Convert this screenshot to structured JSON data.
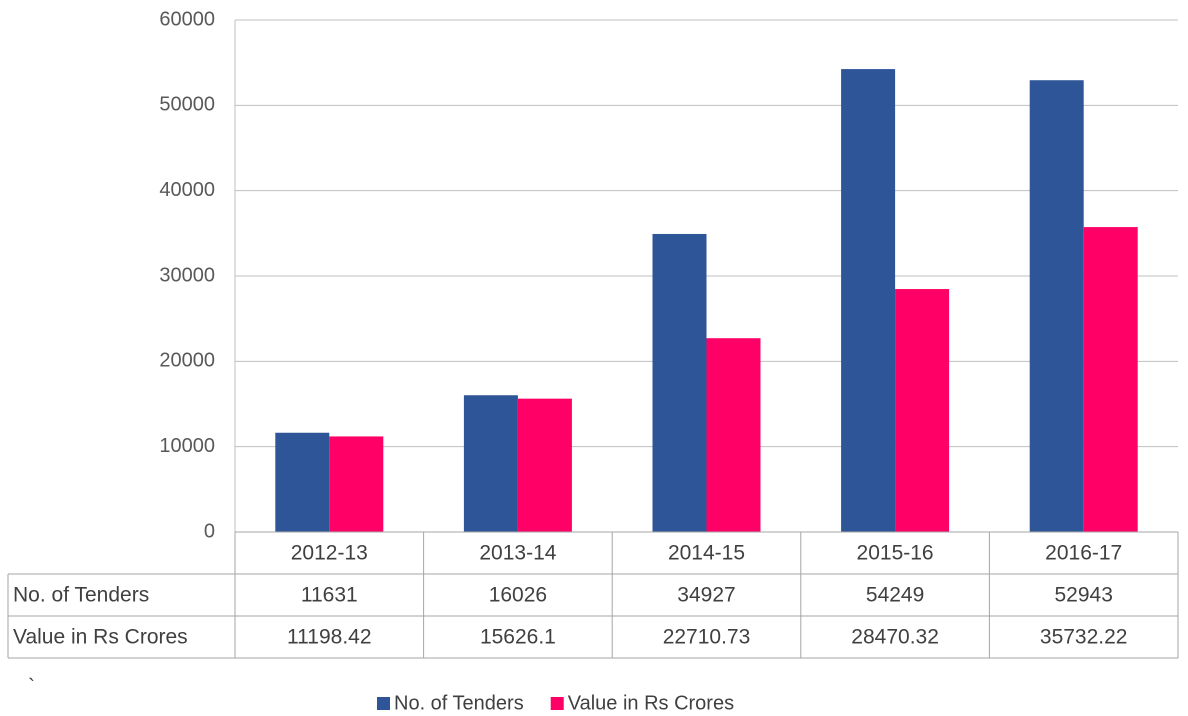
{
  "chart_data": {
    "type": "bar",
    "categories": [
      "2012-13",
      "2013-14",
      "2014-15",
      "2015-16",
      "2016-17"
    ],
    "series": [
      {
        "name": "No. of Tenders",
        "color": "#2e5597",
        "values": [
          11631,
          16026,
          34927,
          54249,
          52943
        ]
      },
      {
        "name": "Value in Rs Crores",
        "color": "#ff0066",
        "values": [
          11198.42,
          15626.1,
          22710.73,
          28470.32,
          35732.22
        ]
      }
    ],
    "ylim": [
      0,
      60000
    ],
    "yticks": [
      0,
      10000,
      20000,
      30000,
      40000,
      50000,
      60000
    ],
    "grid": true,
    "legend": "bottom",
    "data_table": true,
    "annotation": "`"
  }
}
